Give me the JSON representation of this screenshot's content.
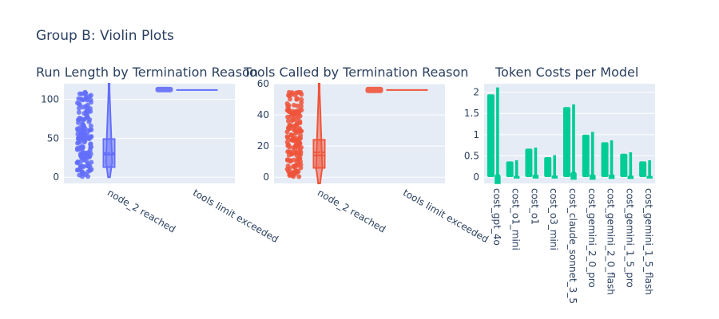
{
  "figure_title": "Group B: Violin Plots",
  "colors": {
    "plot_bg": "#e5ecf6",
    "grid": "#ffffff",
    "text": "#2a3f5f",
    "run_length": "#636efa",
    "tools_called": "#ef553b",
    "token_costs": "#00cc96"
  },
  "chart_data": [
    {
      "type": "violin",
      "title": "Run Length by Termination Reason",
      "categories": [
        "node_2 reached",
        "tools limit exceeded"
      ],
      "ylim": [
        -8,
        120
      ],
      "yticks": [
        0,
        50,
        100
      ],
      "grid": true,
      "legend": "none",
      "series": [
        {
          "category": "node_2 reached",
          "min": 0,
          "q1": 13,
          "median": 29,
          "mean": 31,
          "q3": 49,
          "max": 120,
          "points_range": [
            0,
            112
          ]
        },
        {
          "category": "tools limit exceeded",
          "min": 111,
          "q1": 111,
          "median": 112,
          "mean": 112,
          "q3": 113,
          "max": 114,
          "points_range": [
            111,
            114
          ]
        }
      ]
    },
    {
      "type": "violin",
      "title": "Tools Called by Termination Reason",
      "categories": [
        "node_2 reached",
        "tools limit exceeded"
      ],
      "ylim": [
        -4,
        60
      ],
      "yticks": [
        0,
        20,
        40,
        60
      ],
      "grid": true,
      "legend": "none",
      "series": [
        {
          "category": "node_2 reached",
          "min": -4,
          "q1": 6,
          "median": 14,
          "mean": 16,
          "q3": 24,
          "max": 60,
          "points_range": [
            0,
            55
          ]
        },
        {
          "category": "tools limit exceeded",
          "min": 55,
          "q1": 55,
          "median": 56,
          "mean": 56,
          "q3": 57,
          "max": 57,
          "points_range": [
            55,
            57
          ]
        }
      ]
    },
    {
      "type": "violin",
      "title": "Token Costs per Model",
      "categories": [
        "cost_gpt_4o",
        "cost_o1_mini",
        "cost_o1",
        "cost_o3_mini",
        "cost_claude_sonnet_3_5",
        "cost_gemini_2_0_pro",
        "cost_gemini_2_0_flash",
        "cost_gemini_1_5_pro",
        "cost_gemini_1_5_flash"
      ],
      "ylim": [
        -0.15,
        2.2
      ],
      "yticks": [
        0,
        0.5,
        1,
        1.5,
        2
      ],
      "grid": true,
      "legend": "none",
      "series": [
        {
          "category": "cost_gpt_4o",
          "min": 0,
          "max": 1.95,
          "violin_min": -0.15,
          "violin_max": 2.1
        },
        {
          "category": "cost_o1_mini",
          "min": 0,
          "max": 0.37,
          "violin_min": -0.02,
          "violin_max": 0.38
        },
        {
          "category": "cost_o1",
          "min": 0,
          "max": 0.67,
          "violin_min": -0.02,
          "violin_max": 0.68
        },
        {
          "category": "cost_o3_mini",
          "min": 0,
          "max": 0.47,
          "violin_min": -0.02,
          "violin_max": 0.5
        },
        {
          "category": "cost_claude_sonnet_3_5",
          "min": 0,
          "max": 1.65,
          "violin_min": -0.05,
          "violin_max": 1.7
        },
        {
          "category": "cost_gemini_2_0_pro",
          "min": 0,
          "max": 1.0,
          "violin_min": -0.05,
          "violin_max": 1.05
        },
        {
          "category": "cost_gemini_2_0_flash",
          "min": 0,
          "max": 0.82,
          "violin_min": -0.03,
          "violin_max": 0.85
        },
        {
          "category": "cost_gemini_1_5_pro",
          "min": 0,
          "max": 0.55,
          "violin_min": -0.03,
          "violin_max": 0.57
        },
        {
          "category": "cost_gemini_1_5_flash",
          "min": 0,
          "max": 0.37,
          "violin_min": -0.02,
          "violin_max": 0.38
        }
      ]
    }
  ]
}
